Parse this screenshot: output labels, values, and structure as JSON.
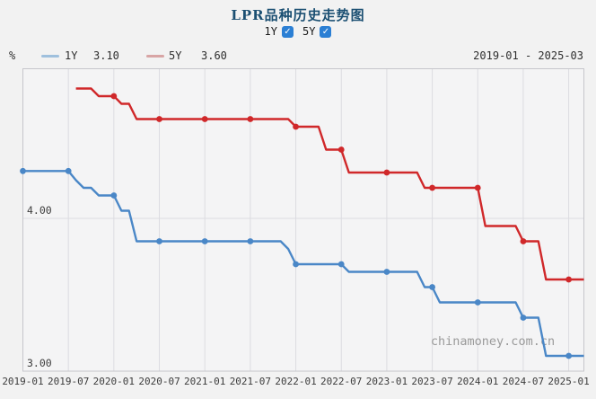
{
  "header": {
    "title": "LPR品种历史走势图",
    "check_glyph": "✓",
    "series_toggles": [
      {
        "label": "1Y",
        "checked": true
      },
      {
        "label": "5Y",
        "checked": true
      }
    ]
  },
  "legend": {
    "unit": "%",
    "items": [
      {
        "label": "1Y",
        "value": "3.10",
        "marker_color": "#9fc0dd"
      },
      {
        "label": "5Y",
        "value": "3.60",
        "marker_color": "#d8a5a5"
      }
    ],
    "date_range": "2019-01 - 2025-03"
  },
  "watermark": "chinamoney.com.cn",
  "colors": {
    "title": "#1b4f72",
    "checkbox": "#2b7fd4",
    "line_1y": "#4a87c7",
    "line_5y": "#d0282a",
    "legend_marker_1y": "#9fc0dd",
    "legend_marker_5y": "#d8a5a5",
    "plot_background": "#f4f4f5",
    "plot_border": "#c6c6cb",
    "gridline": "#dcdce1",
    "axis_text": "#3c3c3c",
    "watermark_text": "#9a9a9a",
    "page_background": "#f2f2f2"
  },
  "chart_data": {
    "type": "line",
    "title": "LPR品种历史走势图",
    "x_unit": "month",
    "x_start": "2019-01",
    "x_end": "2025-03",
    "x_tick_labels": [
      "2019-01",
      "2019-07",
      "2020-01",
      "2020-07",
      "2021-01",
      "2021-07",
      "2022-01",
      "2022-07",
      "2023-01",
      "2023-07",
      "2024-01",
      "2024-07",
      "2025-01"
    ],
    "y_tick_labels": [
      "4.00",
      "3.00"
    ],
    "ylabel": "%",
    "ylim": [
      3.0,
      4.98
    ],
    "y_gridlines": [
      3.0,
      4.0
    ],
    "grid": true,
    "marker_every": 6,
    "series": [
      {
        "name": "1Y",
        "latest_value": 3.1,
        "color": "#4a87c7",
        "values": [
          4.31,
          4.31,
          4.31,
          4.31,
          4.31,
          4.31,
          4.31,
          4.25,
          4.2,
          4.2,
          4.15,
          4.15,
          4.15,
          4.05,
          4.05,
          3.85,
          3.85,
          3.85,
          3.85,
          3.85,
          3.85,
          3.85,
          3.85,
          3.85,
          3.85,
          3.85,
          3.85,
          3.85,
          3.85,
          3.85,
          3.85,
          3.85,
          3.85,
          3.85,
          3.85,
          3.8,
          3.7,
          3.7,
          3.7,
          3.7,
          3.7,
          3.7,
          3.7,
          3.65,
          3.65,
          3.65,
          3.65,
          3.65,
          3.65,
          3.65,
          3.65,
          3.65,
          3.65,
          3.55,
          3.55,
          3.45,
          3.45,
          3.45,
          3.45,
          3.45,
          3.45,
          3.45,
          3.45,
          3.45,
          3.45,
          3.45,
          3.35,
          3.35,
          3.35,
          3.1,
          3.1,
          3.1,
          3.1,
          3.1,
          3.1
        ]
      },
      {
        "name": "5Y",
        "latest_value": 3.6,
        "color": "#d0282a",
        "values": [
          null,
          null,
          null,
          null,
          null,
          null,
          null,
          4.85,
          4.85,
          4.85,
          4.8,
          4.8,
          4.8,
          4.75,
          4.75,
          4.65,
          4.65,
          4.65,
          4.65,
          4.65,
          4.65,
          4.65,
          4.65,
          4.65,
          4.65,
          4.65,
          4.65,
          4.65,
          4.65,
          4.65,
          4.65,
          4.65,
          4.65,
          4.65,
          4.65,
          4.65,
          4.6,
          4.6,
          4.6,
          4.6,
          4.45,
          4.45,
          4.45,
          4.3,
          4.3,
          4.3,
          4.3,
          4.3,
          4.3,
          4.3,
          4.3,
          4.3,
          4.3,
          4.2,
          4.2,
          4.2,
          4.2,
          4.2,
          4.2,
          4.2,
          4.2,
          3.95,
          3.95,
          3.95,
          3.95,
          3.95,
          3.85,
          3.85,
          3.85,
          3.6,
          3.6,
          3.6,
          3.6,
          3.6,
          3.6
        ]
      }
    ]
  }
}
